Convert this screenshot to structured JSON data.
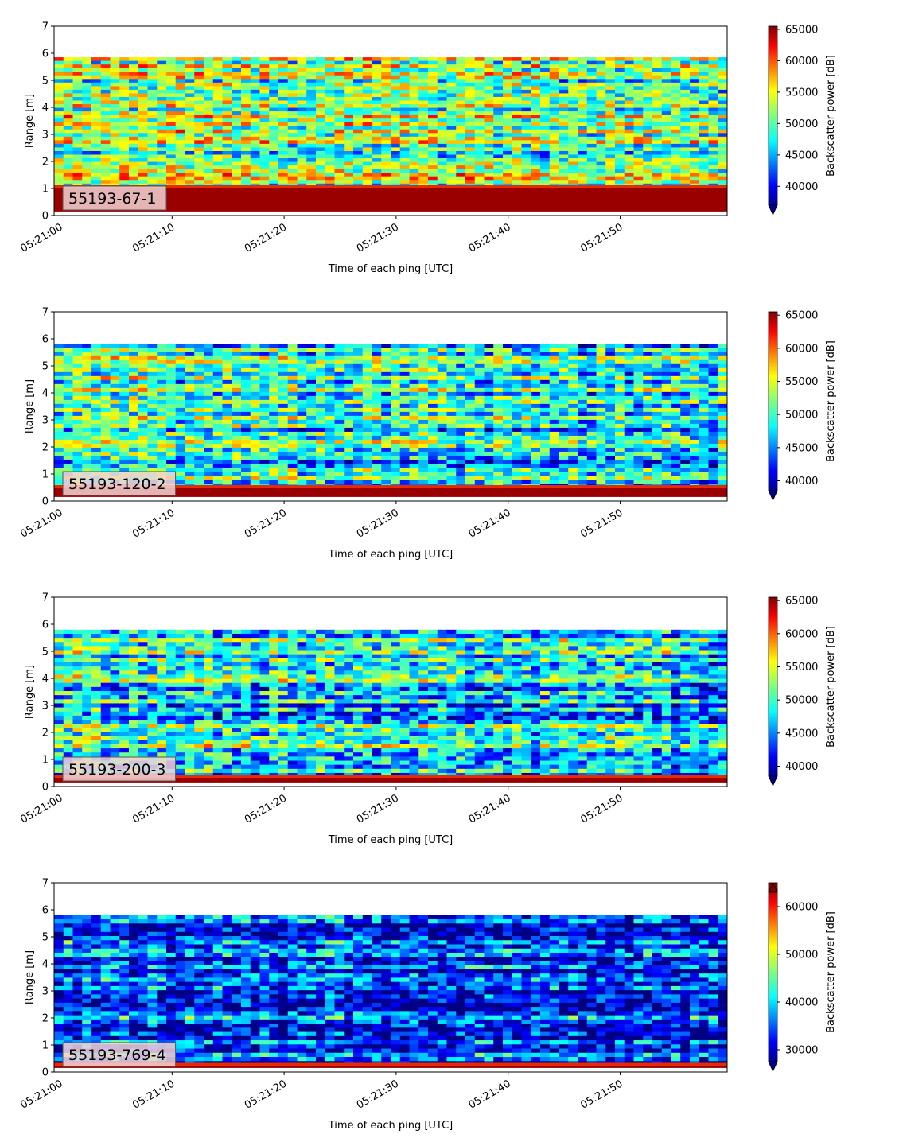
{
  "chart_data": [
    {
      "type": "heatmap",
      "label": "55193-67-1",
      "xlabel": "Time of each ping [UTC]",
      "ylabel": "Range [m]",
      "ylim": [
        0,
        7
      ],
      "yticks": [
        "0",
        "1",
        "2",
        "3",
        "4",
        "5",
        "6",
        "7"
      ],
      "xticks": [
        "05:21:00",
        "05:21:10",
        "05:21:20",
        "05:21:30",
        "05:21:40",
        "05:21:50"
      ],
      "colorbar": {
        "label": "Backscatter power [dB]",
        "min": 37000,
        "max": 65500,
        "ticks": [
          40000,
          45000,
          50000,
          55000,
          60000,
          65000
        ],
        "extend": "min"
      },
      "data_top_m": 5.85,
      "bottom_band_m": 1.05,
      "overall_level": 0.55
    },
    {
      "type": "heatmap",
      "label": "55193-120-2",
      "xlabel": "Time of each ping [UTC]",
      "ylabel": "Range [m]",
      "ylim": [
        0,
        7
      ],
      "yticks": [
        "0",
        "1",
        "2",
        "3",
        "4",
        "5",
        "6",
        "7"
      ],
      "xticks": [
        "05:21:00",
        "05:21:10",
        "05:21:20",
        "05:21:30",
        "05:21:40",
        "05:21:50"
      ],
      "colorbar": {
        "label": "Backscatter power [dB]",
        "min": 38500,
        "max": 65500,
        "ticks": [
          40000,
          45000,
          50000,
          55000,
          60000,
          65000
        ],
        "extend": "min"
      },
      "data_top_m": 5.8,
      "bottom_band_m": 0.5,
      "overall_level": 0.42
    },
    {
      "type": "heatmap",
      "label": "55193-200-3",
      "xlabel": "Time of each ping [UTC]",
      "ylabel": "Range [m]",
      "ylim": [
        0,
        7
      ],
      "yticks": [
        "0",
        "1",
        "2",
        "3",
        "4",
        "5",
        "6",
        "7"
      ],
      "xticks": [
        "05:21:00",
        "05:21:10",
        "05:21:20",
        "05:21:30",
        "05:21:40",
        "05:21:50"
      ],
      "colorbar": {
        "label": "Backscatter power [dB]",
        "min": 38500,
        "max": 65500,
        "ticks": [
          40000,
          45000,
          50000,
          55000,
          60000,
          65000
        ],
        "extend": "min"
      },
      "data_top_m": 5.8,
      "bottom_band_m": 0.35,
      "overall_level": 0.4
    },
    {
      "type": "heatmap",
      "label": "55193-769-4",
      "xlabel": "Time of each ping [UTC]",
      "ylabel": "Range [m]",
      "ylim": [
        0,
        7
      ],
      "yticks": [
        "0",
        "1",
        "2",
        "3",
        "4",
        "5",
        "6",
        "7"
      ],
      "xticks": [
        "05:21:00",
        "05:21:10",
        "05:21:20",
        "05:21:30",
        "05:21:40",
        "05:21:50"
      ],
      "colorbar": {
        "label": "Backscatter power [dB]",
        "min": 27500,
        "max": 65000,
        "ticks": [
          30000,
          40000,
          50000,
          60000
        ],
        "extend": "both"
      },
      "data_top_m": 5.8,
      "bottom_band_m": 0.25,
      "overall_level": 0.22
    }
  ]
}
